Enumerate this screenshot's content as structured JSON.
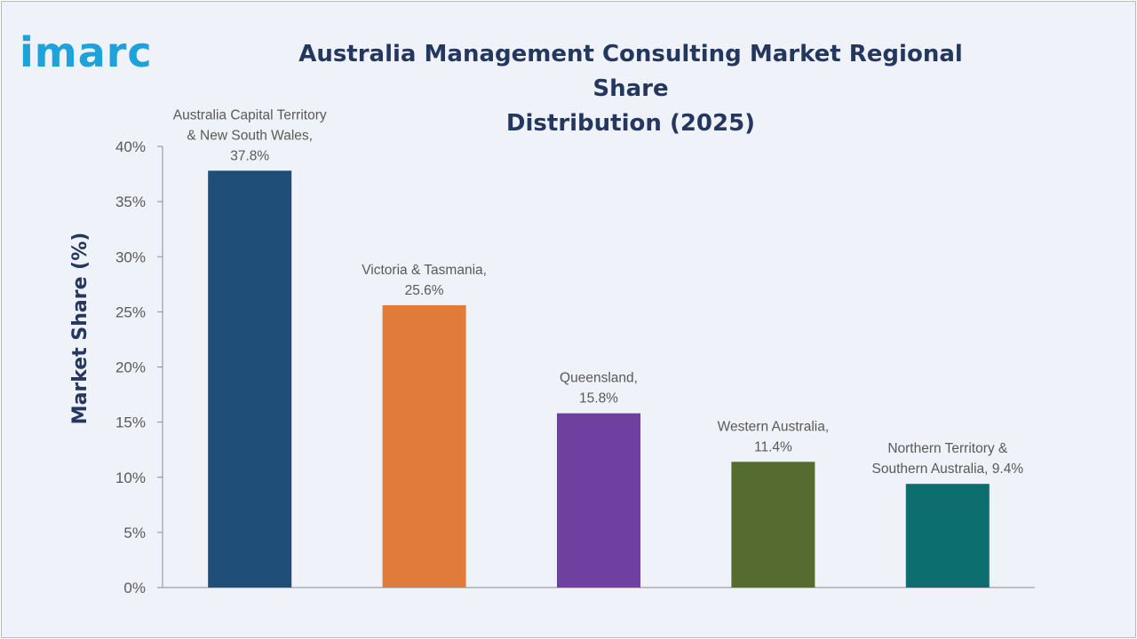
{
  "logo": {
    "text": "imarc"
  },
  "chart_data": {
    "type": "bar",
    "title": [
      "Australia Management Consulting Market Regional Share",
      "Distribution (2025)"
    ],
    "xlabel": "",
    "ylabel": "Market Share (%)",
    "ylim": [
      0,
      40
    ],
    "yticks": [
      0,
      5,
      10,
      15,
      20,
      25,
      30,
      35,
      40
    ],
    "ytick_labels": [
      "0%",
      "5%",
      "10%",
      "15%",
      "20%",
      "25%",
      "30%",
      "35%",
      "40%"
    ],
    "grid": false,
    "legend": "none",
    "categories": [
      "Australia Capital Territory & New South Wales",
      "Victoria & Tasmania",
      "Queensland",
      "Western Australia",
      "Northern Territory & Southern Australia"
    ],
    "values": [
      37.8,
      25.6,
      15.8,
      11.4,
      9.4
    ],
    "data_labels": [
      [
        "Australia Capital Territory",
        "& New South Wales,",
        "37.8%"
      ],
      [
        "Victoria & Tasmania,",
        "25.6%"
      ],
      [
        "Queensland,",
        "15.8%"
      ],
      [
        "Western Australia,",
        "11.4%"
      ],
      [
        "Northern Territory &",
        "Southern Australia, 9.4%"
      ]
    ],
    "colors": [
      "#1f4e79",
      "#e07b39",
      "#7040a0",
      "#566b2f",
      "#0c6e6e"
    ]
  }
}
